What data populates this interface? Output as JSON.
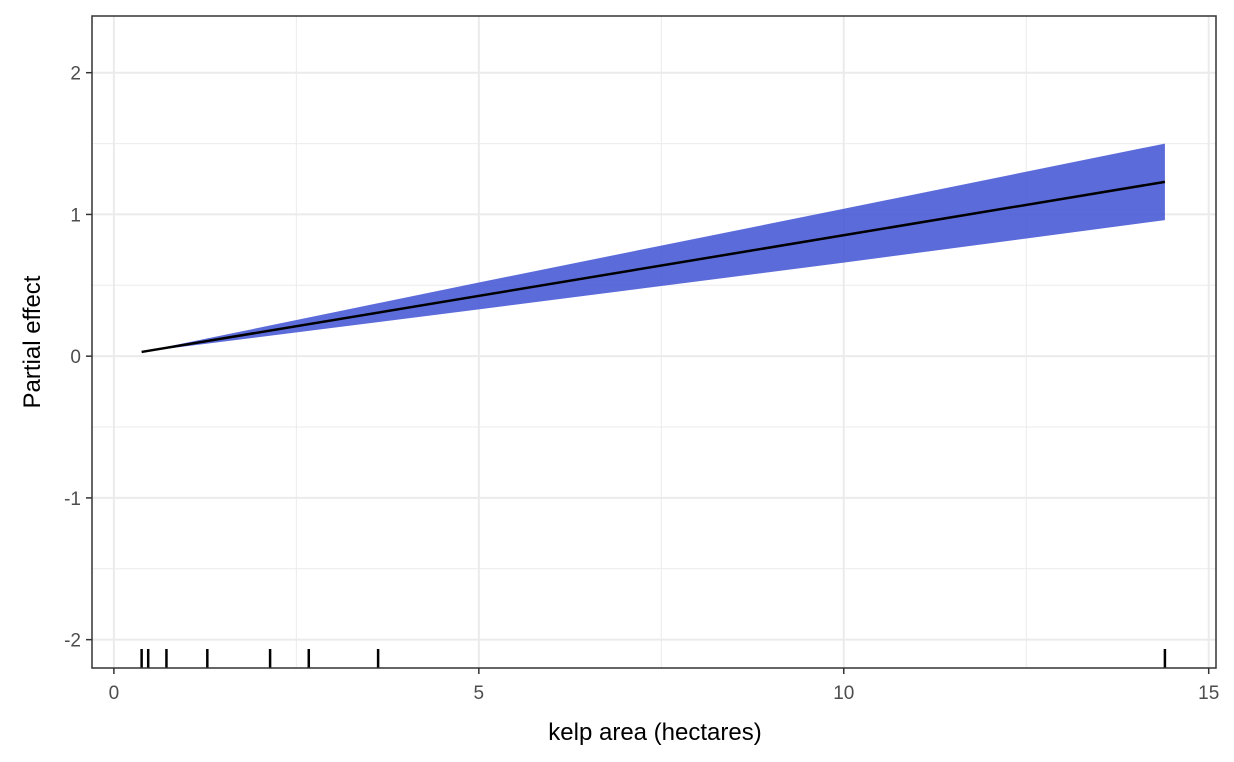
{
  "chart_data": {
    "type": "area",
    "title": "",
    "xlabel": "kelp area (hectares)",
    "ylabel": "Partial effect",
    "xlim": [
      -0.3,
      15.1
    ],
    "ylim": [
      -2.2,
      2.4
    ],
    "x_ticks": [
      0,
      5,
      10,
      15
    ],
    "x_tick_labels": [
      "0",
      "5",
      "10",
      "15"
    ],
    "y_ticks": [
      -2,
      -1,
      0,
      1,
      2
    ],
    "y_tick_labels": [
      "-2",
      "-1",
      "0",
      "1",
      "2"
    ],
    "grid": true,
    "series": [
      {
        "type": "line",
        "color": "#000000",
        "x": [
          0.38,
          14.4
        ],
        "y": [
          0.03,
          1.23
        ]
      },
      {
        "type": "ribbon",
        "color": "#3F51D4",
        "x": [
          0.38,
          5.0,
          10.0,
          14.4
        ],
        "ymin": [
          0.03,
          0.33,
          0.66,
          0.96
        ],
        "ymax": [
          0.03,
          0.52,
          1.04,
          1.5
        ]
      }
    ],
    "rug_x": [
      0.38,
      0.47,
      0.72,
      1.28,
      2.14,
      2.67,
      3.62,
      14.4
    ]
  }
}
